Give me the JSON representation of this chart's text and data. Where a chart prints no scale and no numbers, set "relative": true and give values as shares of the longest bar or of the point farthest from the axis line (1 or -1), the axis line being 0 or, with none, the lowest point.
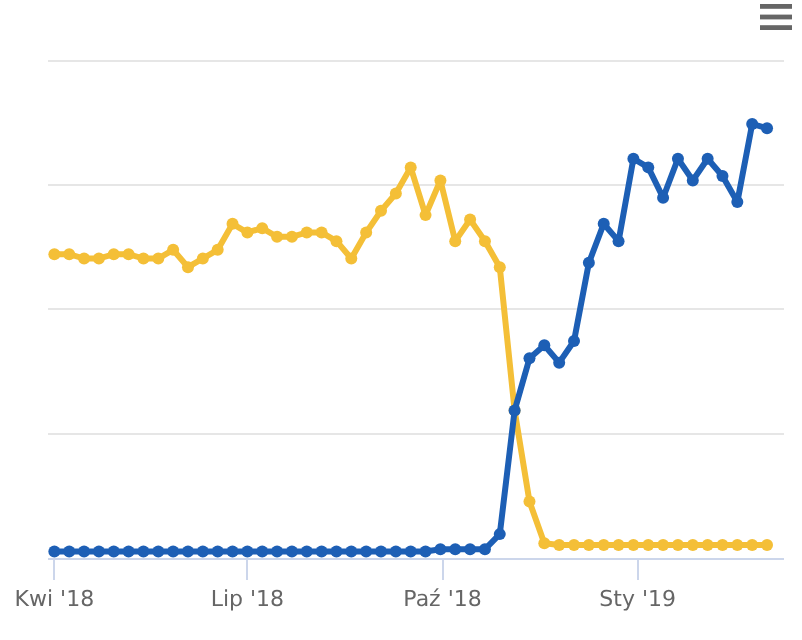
{
  "chart_data": {
    "type": "line",
    "relative": true,
    "marker": "circle",
    "line_style": "solid",
    "grid": "y",
    "xlim": [
      "2018-03-29",
      "2019-03-11"
    ],
    "xticks": [
      {
        "value": "2018-04-01",
        "label": "Kwi '18"
      },
      {
        "value": "2018-07-01",
        "label": "Lip '18"
      },
      {
        "value": "2018-10-01",
        "label": "Paź '18"
      },
      {
        "value": "2019-01-01",
        "label": "Sty '19"
      }
    ],
    "x": [
      "2018-04-01",
      "2018-04-08",
      "2018-04-15",
      "2018-04-22",
      "2018-04-29",
      "2018-05-06",
      "2018-05-13",
      "2018-05-20",
      "2018-05-27",
      "2018-06-03",
      "2018-06-10",
      "2018-06-17",
      "2018-06-24",
      "2018-07-01",
      "2018-07-08",
      "2018-07-15",
      "2018-07-22",
      "2018-07-29",
      "2018-08-05",
      "2018-08-12",
      "2018-08-19",
      "2018-08-26",
      "2018-09-02",
      "2018-09-09",
      "2018-09-16",
      "2018-09-23",
      "2018-09-30",
      "2018-10-07",
      "2018-10-14",
      "2018-10-21",
      "2018-10-28",
      "2018-11-04",
      "2018-11-11",
      "2018-11-18",
      "2018-11-25",
      "2018-12-02",
      "2018-12-09",
      "2018-12-16",
      "2018-12-23",
      "2018-12-30",
      "2019-01-06",
      "2019-01-13",
      "2019-01-20",
      "2019-01-27",
      "2019-02-03",
      "2019-02-10",
      "2019-02-17",
      "2019-02-24",
      "2019-03-03"
    ],
    "series": [
      {
        "color": "#f4bf37",
        "values": [
          0.7,
          0.7,
          0.69,
          0.69,
          0.7,
          0.7,
          0.69,
          0.69,
          0.71,
          0.67,
          0.69,
          0.71,
          0.77,
          0.75,
          0.76,
          0.74,
          0.74,
          0.75,
          0.75,
          0.73,
          0.69,
          0.75,
          0.8,
          0.84,
          0.9,
          0.79,
          0.87,
          0.73,
          0.78,
          0.73,
          0.67,
          0.34,
          0.13,
          0.034,
          0.03,
          0.03,
          0.03,
          0.03,
          0.03,
          0.03,
          0.03,
          0.03,
          0.03,
          0.03,
          0.03,
          0.03,
          0.03,
          0.03,
          0.03
        ]
      },
      {
        "color": "#1d5fb5",
        "values": [
          0.015,
          0.015,
          0.015,
          0.015,
          0.015,
          0.015,
          0.015,
          0.015,
          0.015,
          0.015,
          0.015,
          0.015,
          0.015,
          0.015,
          0.015,
          0.015,
          0.015,
          0.015,
          0.015,
          0.015,
          0.015,
          0.015,
          0.015,
          0.015,
          0.015,
          0.015,
          0.02,
          0.02,
          0.02,
          0.02,
          0.055,
          0.34,
          0.46,
          0.49,
          0.45,
          0.5,
          0.68,
          0.77,
          0.73,
          0.92,
          0.9,
          0.83,
          0.92,
          0.87,
          0.92,
          0.88,
          0.82,
          1,
          0.99
        ]
      }
    ]
  }
}
